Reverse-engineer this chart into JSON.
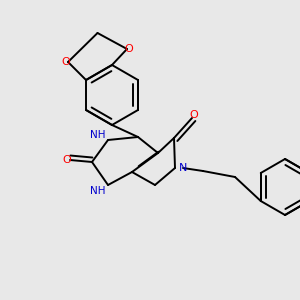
{
  "bg_color": "#e8e8e8",
  "bond_color": "#000000",
  "N_color": "#0000cd",
  "O_color": "#ff0000",
  "lw": 1.4,
  "figsize": [
    3.0,
    3.0
  ],
  "dpi": 100,
  "xlim": [
    0,
    300
  ],
  "ylim": [
    0,
    300
  ]
}
